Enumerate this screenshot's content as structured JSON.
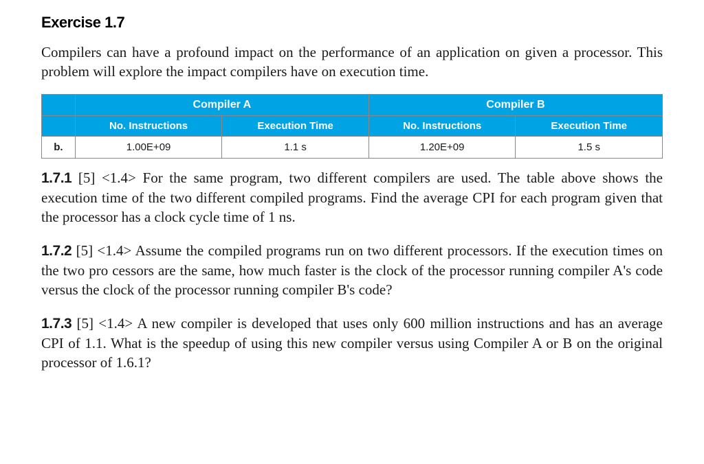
{
  "exercise": {
    "title": "Exercise 1.7",
    "intro": "Compilers can have a profound impact on the performance of an application on given a processor. This problem will explore the impact compilers have on execution time."
  },
  "table": {
    "type": "table",
    "header_bg": "#00a4e4",
    "header_color": "#ffffff",
    "border_color": "#888888",
    "groups": [
      "Compiler A",
      "Compiler B"
    ],
    "subheaders": [
      "No. Instructions",
      "Execution Time",
      "No. Instructions",
      "Execution Time"
    ],
    "row_label": "b.",
    "cells": [
      "1.00E+09",
      "1.1 s",
      "1.20E+09",
      "1.5 s"
    ]
  },
  "questions": {
    "q1": {
      "num": "1.7.1",
      "meta": "[5] <1.4>",
      "text": "For the same program, two different compilers are used. The table above shows the execution time of the two different compiled programs. Find the average CPI for each program given that the processor has a clock cycle time of 1 ns."
    },
    "q2": {
      "num": "1.7.2",
      "meta": "[5] <1.4>",
      "text": "Assume the compiled programs run on two different processors. If the execution times on the two pro cessors are the same, how much faster is the clock of the processor running compiler A's code versus the clock of the processor running compiler B's code?"
    },
    "q3": {
      "num": "1.7.3",
      "meta": "[5] <1.4>",
      "text": "A new compiler is developed that uses only 600 million instructions and has an average CPI of 1.1. What is the speedup of using this new compiler versus using Compiler A or B on the original processor of 1.6.1?"
    }
  }
}
